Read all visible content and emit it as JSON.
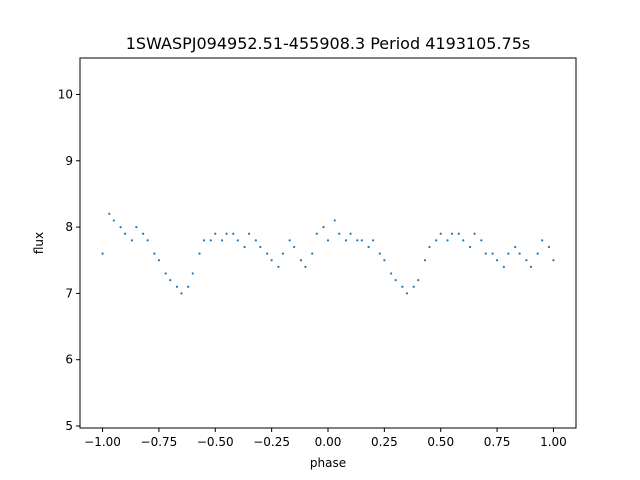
{
  "chart_data": {
    "type": "scatter",
    "title": "1SWASPJ094952.51-455908.3 Period 4193105.75s",
    "xlabel": "phase",
    "ylabel": "flux",
    "xlim": [
      -1.1,
      1.1
    ],
    "ylim": [
      4.97,
      10.55
    ],
    "xticks": [
      -1.0,
      -0.75,
      -0.5,
      -0.25,
      0.0,
      0.25,
      0.5,
      0.75,
      1.0
    ],
    "xtick_labels": [
      "−1.00",
      "−0.75",
      "−0.50",
      "−0.25",
      "0.00",
      "0.25",
      "0.50",
      "0.75",
      "1.00"
    ],
    "yticks": [
      5,
      6,
      7,
      8,
      9,
      10
    ],
    "ytick_labels": [
      "5",
      "6",
      "7",
      "8",
      "9",
      "10"
    ],
    "grid": false,
    "point_color": "#1f77b4",
    "series": [
      {
        "x": [
          -1.0,
          -0.97,
          -0.95,
          -0.92,
          -0.9,
          -0.87,
          -0.85,
          -0.82,
          -0.8,
          -0.77,
          -0.75,
          -0.72,
          -0.7,
          -0.67,
          -0.65,
          -0.62,
          -0.6,
          -0.57,
          -0.55,
          -0.52,
          -0.5,
          -0.47,
          -0.45,
          -0.42,
          -0.4,
          -0.37,
          -0.35,
          -0.32,
          -0.3,
          -0.27,
          -0.25,
          -0.22,
          -0.2,
          -0.17,
          -0.15,
          -0.12,
          -0.1,
          -0.07,
          -0.05,
          -0.02,
          0.0,
          0.03,
          0.05,
          0.08,
          0.1,
          0.13,
          0.15,
          0.18,
          0.2,
          0.23,
          0.25,
          0.28,
          0.3,
          0.33,
          0.35,
          0.38,
          0.4,
          0.43,
          0.45,
          0.48,
          0.5,
          0.53,
          0.55,
          0.58,
          0.6,
          0.63,
          0.65,
          0.68,
          0.7,
          0.73,
          0.75,
          0.78,
          0.8,
          0.83,
          0.85,
          0.88,
          0.9,
          0.93,
          0.95,
          0.98,
          1.0
        ],
        "y": [
          7.6,
          8.2,
          8.1,
          8.0,
          7.9,
          7.8,
          8.0,
          7.9,
          7.8,
          7.6,
          7.5,
          7.3,
          7.2,
          7.1,
          7.0,
          7.1,
          7.3,
          7.6,
          7.8,
          7.8,
          7.9,
          7.8,
          7.9,
          7.9,
          7.8,
          7.7,
          7.9,
          7.8,
          7.7,
          7.6,
          7.5,
          7.4,
          7.6,
          7.8,
          7.7,
          7.5,
          7.4,
          7.6,
          7.9,
          8.0,
          7.8,
          8.1,
          7.9,
          7.8,
          7.9,
          7.8,
          7.8,
          7.7,
          7.8,
          7.6,
          7.5,
          7.3,
          7.2,
          7.1,
          7.0,
          7.1,
          7.2,
          7.5,
          7.7,
          7.8,
          7.9,
          7.8,
          7.9,
          7.9,
          7.8,
          7.7,
          7.9,
          7.8,
          7.6,
          7.6,
          7.5,
          7.4,
          7.6,
          7.7,
          7.6,
          7.5,
          7.4,
          7.6,
          7.8,
          7.7,
          7.5
        ]
      }
    ]
  }
}
